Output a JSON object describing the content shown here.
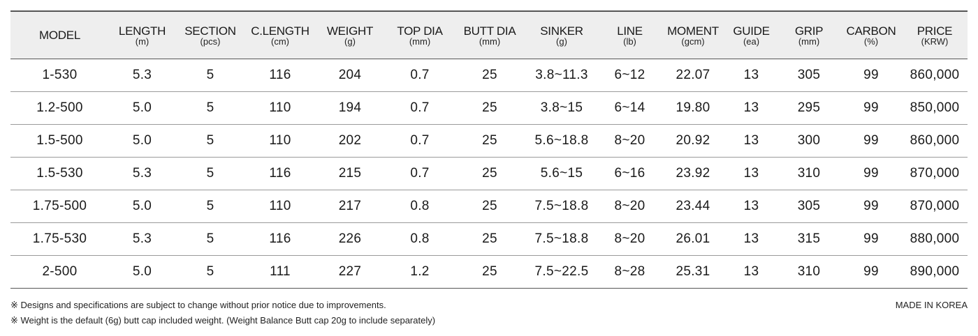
{
  "columns": [
    {
      "name": "MODEL",
      "unit": ""
    },
    {
      "name": "LENGTH",
      "unit": "(m)"
    },
    {
      "name": "SECTION",
      "unit": "(pcs)"
    },
    {
      "name": "C.LENGTH",
      "unit": "(cm)"
    },
    {
      "name": "WEIGHT",
      "unit": "(g)"
    },
    {
      "name": "TOP DIA",
      "unit": "(mm)"
    },
    {
      "name": "BUTT DIA",
      "unit": "(mm)"
    },
    {
      "name": "SINKER",
      "unit": "(g)"
    },
    {
      "name": "LINE",
      "unit": "(lb)"
    },
    {
      "name": "MOMENT",
      "unit": "(gcm)"
    },
    {
      "name": "GUIDE",
      "unit": "(ea)"
    },
    {
      "name": "GRIP",
      "unit": "(mm)"
    },
    {
      "name": "CARBON",
      "unit": "(%)"
    },
    {
      "name": "PRICE",
      "unit": "(KRW)"
    }
  ],
  "rows": [
    [
      "1-530",
      "5.3",
      "5",
      "116",
      "204",
      "0.7",
      "25",
      "3.8~11.3",
      "6~12",
      "22.07",
      "13",
      "305",
      "99",
      "860,000"
    ],
    [
      "1.2-500",
      "5.0",
      "5",
      "110",
      "194",
      "0.7",
      "25",
      "3.8~15",
      "6~14",
      "19.80",
      "13",
      "295",
      "99",
      "850,000"
    ],
    [
      "1.5-500",
      "5.0",
      "5",
      "110",
      "202",
      "0.7",
      "25",
      "5.6~18.8",
      "8~20",
      "20.92",
      "13",
      "300",
      "99",
      "860,000"
    ],
    [
      "1.5-530",
      "5.3",
      "5",
      "116",
      "215",
      "0.7",
      "25",
      "5.6~15",
      "6~16",
      "23.92",
      "13",
      "310",
      "99",
      "870,000"
    ],
    [
      "1.75-500",
      "5.0",
      "5",
      "110",
      "217",
      "0.8",
      "25",
      "7.5~18.8",
      "8~20",
      "23.44",
      "13",
      "305",
      "99",
      "870,000"
    ],
    [
      "1.75-530",
      "5.3",
      "5",
      "116",
      "226",
      "0.8",
      "25",
      "7.5~18.8",
      "8~20",
      "26.01",
      "13",
      "315",
      "99",
      "880,000"
    ],
    [
      "2-500",
      "5.0",
      "5",
      "111",
      "227",
      "1.2",
      "25",
      "7.5~22.5",
      "8~28",
      "25.31",
      "13",
      "310",
      "99",
      "890,000"
    ]
  ],
  "notes": [
    "※ Designs and specifications are subject to change without prior notice due to improvements.",
    "※ Weight is the default (6g) butt cap included weight. (Weight Balance Butt cap 20g to include separately)"
  ],
  "made_in": "MADE IN KOREA",
  "colors": {
    "header_bg": "#eeeeee",
    "rule": "#555555",
    "row_rule": "#9a9a9a",
    "text": "#1a1a1a"
  }
}
